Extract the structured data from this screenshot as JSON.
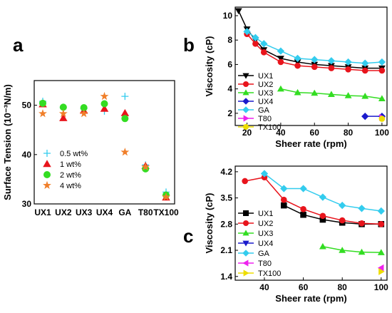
{
  "chart_data": [
    {
      "panel": "a",
      "type": "scatter",
      "title": "",
      "xlabel": "",
      "ylabel": "Surface Tension (10⁻³N/m)",
      "categories": [
        "UX1",
        "UX2",
        "UX3",
        "UX4",
        "GA",
        "T80",
        "TX100"
      ],
      "ylim": [
        30,
        55
      ],
      "yticks": [
        30,
        40,
        50
      ],
      "legend_position": "bottom-left",
      "series": [
        {
          "name": "0.5 wt%",
          "marker": "plus",
          "color": "#33ccee",
          "values": [
            50.8,
            49.6,
            49.3,
            48.8,
            51.8,
            37.9,
            32.4
          ]
        },
        {
          "name": "1 wt%",
          "marker": "triangle",
          "color": "#e8141c",
          "values": [
            50.2,
            47.4,
            48.9,
            49.3,
            48.4,
            37.7,
            31.3
          ]
        },
        {
          "name": "2 wt%",
          "marker": "circle",
          "color": "#33dd22",
          "values": [
            50.4,
            49.6,
            49.5,
            50.3,
            47.3,
            37.1,
            31.8
          ]
        },
        {
          "name": "4 wt%",
          "marker": "star",
          "color": "#f07f2a",
          "values": [
            48.3,
            48.3,
            48.3,
            51.8,
            40.5,
            37.5,
            31.4
          ]
        }
      ]
    },
    {
      "panel": "b",
      "type": "line",
      "title": "",
      "xlabel": "Sheer rate (rpm)",
      "ylabel": "Viscosity (cP)",
      "xlim": [
        13,
        103
      ],
      "ylim": [
        1,
        10.7
      ],
      "xticks": [
        20,
        40,
        60,
        80,
        100
      ],
      "yticks": [
        2,
        4,
        6,
        8,
        10
      ],
      "legend_position": "bottom-left",
      "series": [
        {
          "name": "UX1",
          "marker": "triangle-down",
          "color": "#000000",
          "x": [
            15,
            20,
            25,
            30,
            40,
            50,
            60,
            70,
            80,
            90,
            100
          ],
          "values": [
            10.4,
            8.9,
            8.0,
            7.2,
            6.5,
            6.2,
            6.0,
            5.9,
            5.8,
            5.7,
            5.7
          ]
        },
        {
          "name": "UX2",
          "marker": "circle",
          "color": "#e8141c",
          "x": [
            20,
            25,
            30,
            40,
            50,
            60,
            70,
            80,
            90,
            100
          ],
          "values": [
            8.5,
            7.7,
            7.0,
            6.2,
            5.9,
            5.8,
            5.7,
            5.6,
            5.5,
            5.5
          ]
        },
        {
          "name": "UX3",
          "marker": "triangle",
          "color": "#33dd22",
          "x": [
            40,
            50,
            60,
            70,
            80,
            90,
            100
          ],
          "values": [
            4.0,
            3.7,
            3.65,
            3.55,
            3.45,
            3.4,
            3.2
          ]
        },
        {
          "name": "UX4",
          "marker": "diamond",
          "color": "#1a1acc",
          "x": [
            90,
            100
          ],
          "values": [
            1.75,
            1.75
          ]
        },
        {
          "name": "GA",
          "marker": "diamond",
          "color": "#33ccee",
          "x": [
            20,
            25,
            30,
            40,
            50,
            60,
            70,
            80,
            90,
            100
          ],
          "values": [
            8.7,
            8.2,
            7.7,
            7.1,
            6.5,
            6.4,
            6.3,
            6.2,
            6.1,
            6.2
          ]
        },
        {
          "name": "T80",
          "marker": "triangle-right",
          "color": "#ee22ee",
          "x": [
            100
          ],
          "values": [
            1.65
          ]
        },
        {
          "name": "TX100",
          "marker": "circle",
          "color": "#eedd00",
          "x": [
            100
          ],
          "values": [
            1.55
          ]
        }
      ]
    },
    {
      "panel": "c",
      "type": "line",
      "title": "",
      "xlabel": "Sheer rate (rpm)",
      "ylabel": "Viscosity (cP)",
      "xlim": [
        25,
        103
      ],
      "ylim": [
        1.3,
        4.35
      ],
      "xticks": [
        40,
        60,
        80,
        100
      ],
      "yticks": [
        1.4,
        2.1,
        2.8,
        3.5,
        4.2
      ],
      "legend_position": "bottom-left",
      "series": [
        {
          "name": "UX1",
          "marker": "square",
          "color": "#000000",
          "x": [
            50,
            60,
            70,
            80,
            90,
            100
          ],
          "values": [
            3.3,
            3.05,
            2.92,
            2.84,
            2.8,
            2.8
          ]
        },
        {
          "name": "UX2",
          "marker": "circle",
          "color": "#e8141c",
          "x": [
            30,
            40,
            50,
            60,
            70,
            80,
            90,
            100
          ],
          "values": [
            3.95,
            4.05,
            3.45,
            3.2,
            3.02,
            2.9,
            2.82,
            2.8
          ]
        },
        {
          "name": "UX3",
          "marker": "triangle",
          "color": "#33dd22",
          "x": [
            70,
            80,
            90,
            100
          ],
          "values": [
            2.2,
            2.1,
            2.05,
            2.04
          ]
        },
        {
          "name": "UX4",
          "marker": "triangle-down",
          "color": "#1a1acc",
          "x": [],
          "values": []
        },
        {
          "name": "GA",
          "marker": "diamond",
          "color": "#33ccee",
          "x": [
            40,
            50,
            60,
            70,
            80,
            90,
            100
          ],
          "values": [
            4.15,
            3.75,
            3.75,
            3.52,
            3.3,
            3.22,
            3.15
          ]
        },
        {
          "name": "T80",
          "marker": "triangle-left",
          "color": "#ee22ee",
          "x": [
            100
          ],
          "values": [
            1.63
          ]
        },
        {
          "name": "TX100",
          "marker": "triangle-right",
          "color": "#eedd00",
          "x": [
            100
          ],
          "values": [
            1.53
          ]
        }
      ]
    }
  ]
}
